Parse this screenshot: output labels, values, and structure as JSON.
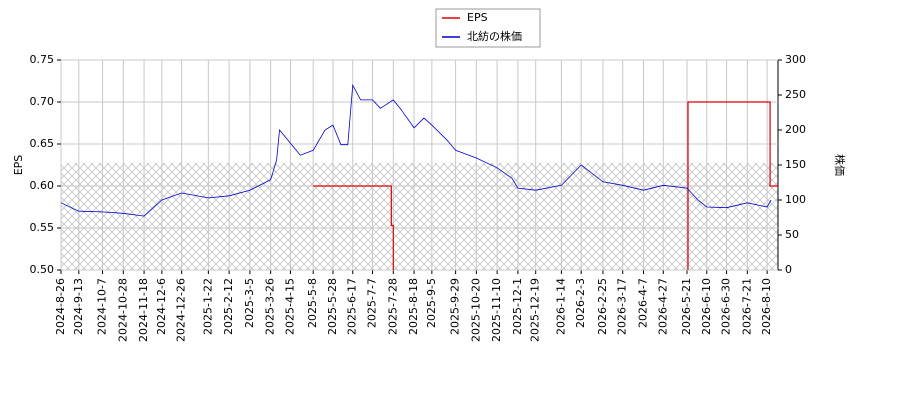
{
  "chart_data": {
    "type": "line",
    "legend_position": "upper center",
    "grid": true,
    "ylabel": "EPS",
    "y2label": "株価",
    "xlim": [
      "2024-8-26",
      "2026-8-21"
    ],
    "xticks": [
      "2024-8-26",
      "2024-9-13",
      "2024-10-7",
      "2024-10-28",
      "2024-11-18",
      "2024-12-6",
      "2024-12-26",
      "2025-1-22",
      "2025-2-12",
      "2025-3-5",
      "2025-3-26",
      "2025-4-15",
      "2025-5-8",
      "2025-5-28",
      "2025-6-17",
      "2025-7-7",
      "2025-7-28",
      "2025-8-18",
      "2025-9-5",
      "2025-9-29",
      "2025-10-20",
      "2025-11-10",
      "2025-12-1",
      "2025-12-19",
      "2026-1-14",
      "2026-2-3",
      "2026-2-25",
      "2026-3-17",
      "2026-4-7",
      "2026-4-27",
      "2026-5-21",
      "2026-6-10",
      "2026-6-30",
      "2026-7-21",
      "2026-8-10"
    ],
    "ylim": [
      0.5,
      0.75
    ],
    "yticks": [
      {
        "value": 0.5,
        "label": "0.50"
      },
      {
        "value": 0.55,
        "label": "0.55"
      },
      {
        "value": 0.6,
        "label": "0.60"
      },
      {
        "value": 0.65,
        "label": "0.65"
      },
      {
        "value": 0.7,
        "label": "0.70"
      },
      {
        "value": 0.75,
        "label": "0.75"
      }
    ],
    "y2lim": [
      0,
      300
    ],
    "y2ticks": [
      0,
      50,
      100,
      150,
      200,
      250,
      300
    ],
    "series": [
      {
        "name": "EPS",
        "color": "#dd0000",
        "axis": "y",
        "x": [
          "2025-5-8",
          "2025-7-26",
          "2025-7-26",
          "2025-7-28",
          "2025-7-28",
          "2026-5-22",
          "2026-5-22",
          "2026-5-22",
          "2026-8-13",
          "2026-8-13",
          "2026-8-21"
        ],
        "values": [
          0.6,
          0.6,
          0.553,
          0.553,
          0.5,
          null,
          0.5,
          0.7,
          0.7,
          0.6,
          0.6
        ]
      },
      {
        "name": "北紡の株価",
        "color": "#0000cc",
        "axis": "y2",
        "x": [
          "2024-8-26",
          "2024-9-13",
          "2024-10-7",
          "2024-10-28",
          "2024-11-18",
          "2024-12-6",
          "2024-12-26",
          "2025-1-22",
          "2025-2-12",
          "2025-3-5",
          "2025-3-26",
          "2025-4-1",
          "2025-4-4",
          "2025-4-15",
          "2025-4-25",
          "2025-5-8",
          "2025-5-20",
          "2025-5-28",
          "2025-6-5",
          "2025-6-12",
          "2025-6-17",
          "2025-6-25",
          "2025-7-7",
          "2025-7-15",
          "2025-7-28",
          "2025-8-5",
          "2025-8-18",
          "2025-8-28",
          "2025-9-5",
          "2025-9-20",
          "2025-9-29",
          "2025-10-20",
          "2025-11-10",
          "2025-11-25",
          "2025-12-1",
          "2025-12-19",
          "2026-1-14",
          "2026-2-3",
          "2026-2-25",
          "2026-3-17",
          "2026-4-7",
          "2026-4-27",
          "2026-5-21",
          "2026-6-1",
          "2026-6-10",
          "2026-6-30",
          "2026-7-21",
          "2026-8-10",
          "2026-8-14"
        ],
        "values": [
          96,
          84,
          83,
          81,
          77,
          100,
          110,
          103,
          106,
          114,
          129,
          157,
          200,
          181,
          164,
          171,
          200,
          207,
          179,
          179,
          264,
          243,
          243,
          231,
          243,
          229,
          203,
          217,
          207,
          186,
          171,
          160,
          146,
          131,
          117,
          114,
          121,
          150,
          126,
          121,
          114,
          121,
          117,
          100,
          90,
          89,
          96,
          90,
          100
        ]
      }
    ]
  }
}
